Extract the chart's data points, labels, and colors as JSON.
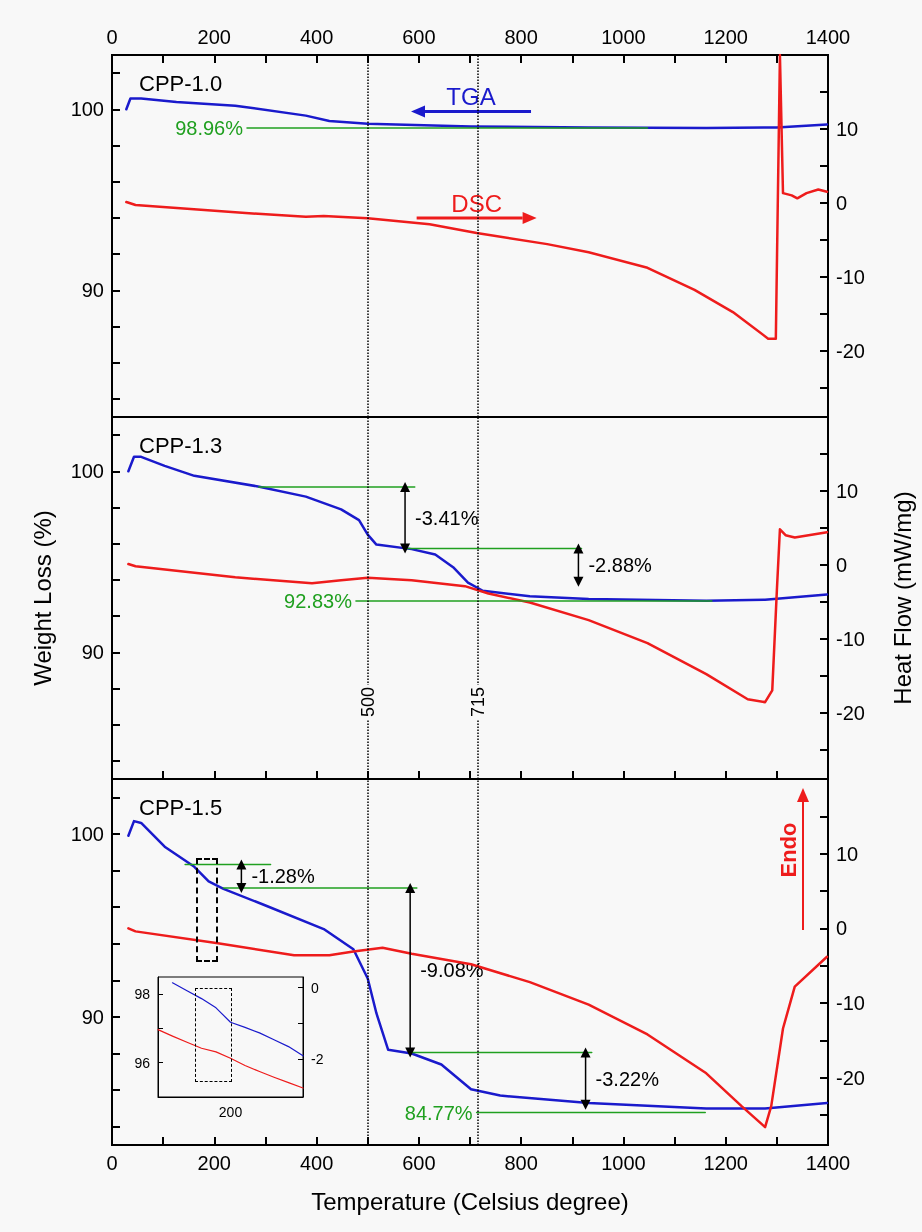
{
  "chart_data": [
    {
      "type": "line",
      "title": "CPP-1.0",
      "xlim": [
        0,
        1400
      ],
      "xticks": [
        0,
        {
          "value": 100,
          "label": null
        },
        200,
        {
          "value": 300,
          "label": null
        },
        400,
        {
          "value": 500,
          "label": null
        },
        600,
        {
          "value": 700,
          "label": null
        },
        800,
        {
          "value": 900,
          "label": null
        },
        1000,
        {
          "value": 1100,
          "label": null
        },
        1200,
        {
          "value": 1300,
          "label": null
        },
        1400
      ],
      "ylim": [
        83,
        103
      ],
      "yticks": [
        {
          "value": 84,
          "label": null
        },
        {
          "value": 86,
          "label": null
        },
        {
          "value": 88,
          "label": null
        },
        90,
        {
          "value": 92,
          "label": null
        },
        {
          "value": 94,
          "label": null
        },
        {
          "value": 96,
          "label": null
        },
        {
          "value": 98,
          "label": null
        },
        100,
        {
          "value": 102,
          "label": null
        }
      ],
      "y2lim": [
        -29,
        20
      ],
      "y2ticks": [
        {
          "value": -25,
          "label": null
        },
        -20,
        {
          "value": -15,
          "label": null
        },
        -10,
        {
          "value": -5,
          "label": null
        },
        0,
        {
          "value": 5,
          "label": null
        },
        10,
        {
          "value": 15,
          "label": null
        }
      ],
      "ref_lines": [
        {
          "axis": "x",
          "value": 500,
          "color": "#000000",
          "line_style": "dotted"
        },
        {
          "axis": "x",
          "value": 715,
          "color": "#000000",
          "line_style": "dotted"
        }
      ],
      "series": [
        {
          "name": "TGA",
          "color": "#1a1acc",
          "x": [
            28,
            36,
            57,
            126,
            241,
            379,
            425,
            500,
            702,
            932,
            1162,
            1300,
            1398
          ],
          "values": [
            100,
            100.6,
            100.6,
            100.4,
            100.2,
            99.65,
            99.35,
            99.2,
            99.05,
            98.99,
            98.97,
            99.0,
            99.16
          ]
        },
        {
          "name": "DSC",
          "color": "#ee1c1c",
          "axis": "y2",
          "x": [
            28,
            46,
            241,
            379,
            414,
            500,
            621,
            713,
            851,
            932,
            1047,
            1139,
            1214,
            1283,
            1298,
            1306,
            1312,
            1329,
            1340,
            1358,
            1381,
            1398
          ],
          "values": [
            0.1,
            -0.3,
            -1.3,
            -1.9,
            -1.8,
            -2.1,
            -2.9,
            -4.1,
            -5.6,
            -6.7,
            -8.8,
            -11.8,
            -14.8,
            -18.4,
            -18.4,
            20,
            1.3,
            1.0,
            0.6,
            1.3,
            1.8,
            1.5
          ]
        },
        {
          "color": "#20a020",
          "marker": "none",
          "x": [
            264,
            1047
          ],
          "values": [
            98.96,
            98.96
          ],
          "value_labels": [
            "98.96%",
            null
          ]
        }
      ]
    },
    {
      "type": "line",
      "title": "CPP-1.3",
      "ylabel": "Weight Loss (%)",
      "y2label": "Heat Flow (mW/mg)",
      "xlim": [
        0,
        1400
      ],
      "xticks": [
        {
          "value": 0,
          "label": null
        },
        {
          "value": 100,
          "label": null
        },
        {
          "value": 200,
          "label": null
        },
        {
          "value": 300,
          "label": null
        },
        {
          "value": 400,
          "label": null
        },
        {
          "value": 500,
          "label": null
        },
        {
          "value": 600,
          "label": null
        },
        {
          "value": 700,
          "label": null
        },
        {
          "value": 800,
          "label": null
        },
        {
          "value": 900,
          "label": null
        },
        {
          "value": 1000,
          "label": null
        },
        {
          "value": 1100,
          "label": null
        },
        {
          "value": 1200,
          "label": null
        },
        {
          "value": 1300,
          "label": null
        },
        {
          "value": 1400,
          "label": null
        }
      ],
      "ylim": [
        83,
        103
      ],
      "yticks": [
        {
          "value": 84,
          "label": null
        },
        {
          "value": 86,
          "label": null
        },
        {
          "value": 88,
          "label": null
        },
        90,
        {
          "value": 92,
          "label": null
        },
        {
          "value": 94,
          "label": null
        },
        {
          "value": 96,
          "label": null
        },
        {
          "value": 98,
          "label": null
        },
        100,
        {
          "value": 102,
          "label": null
        }
      ],
      "y2lim": [
        -29,
        20
      ],
      "y2ticks": [
        {
          "value": -25,
          "label": null
        },
        -20,
        {
          "value": -15,
          "label": null
        },
        -10,
        {
          "value": -5,
          "label": null
        },
        0,
        {
          "value": 5,
          "label": null
        },
        10,
        {
          "value": 15,
          "label": null
        }
      ],
      "ref_lines": [
        {
          "axis": "x",
          "value": 500,
          "label": "500",
          "color": "#000000",
          "line_style": "dotted"
        },
        {
          "axis": "x",
          "value": 715,
          "label": "715",
          "color": "#000000",
          "line_style": "dotted"
        }
      ],
      "annotations": [
        {
          "text": "-3.41%",
          "x": 573,
          "y": 97.43
        },
        {
          "text": "-2.88%",
          "x": 912,
          "y": 94.8
        }
      ],
      "series": [
        {
          "color": "#1a1acc",
          "x": [
            32,
            43,
            57,
            103,
            161,
            288,
            379,
            448,
            483,
            500,
            517,
            586,
            632,
            667,
            696,
            725,
            817,
            932,
            1162,
            1277,
            1398
          ],
          "values": [
            100,
            100.8,
            100.8,
            100.3,
            99.75,
            99.15,
            98.6,
            97.9,
            97.3,
            96.5,
            95.95,
            95.7,
            95.4,
            94.7,
            93.85,
            93.4,
            93.1,
            92.95,
            92.85,
            92.9,
            93.2
          ]
        },
        {
          "color": "#ee1c1c",
          "axis": "y2",
          "x": [
            32,
            46,
            241,
            391,
            448,
            500,
            586,
            690,
            736,
            817,
            932,
            1047,
            1162,
            1243,
            1277,
            1291,
            1300,
            1306,
            1317,
            1335,
            1398
          ],
          "values": [
            0.1,
            -0.2,
            -1.7,
            -2.5,
            -2.1,
            -1.75,
            -2.1,
            -2.9,
            -3.9,
            -5.1,
            -7.5,
            -10.6,
            -14.8,
            -18.2,
            -18.6,
            -17,
            -3.5,
            4.8,
            4.0,
            3.7,
            4.4
          ]
        },
        {
          "color": "#20a020",
          "marker": "none",
          "x": [
            287,
            592
          ],
          "values": [
            99.13,
            99.13
          ]
        },
        {
          "color": "#20a020",
          "marker": "none",
          "x": [
            575,
            918
          ],
          "values": [
            95.73,
            95.73
          ]
        },
        {
          "color": "#20a020",
          "marker": "none",
          "x": [
            477,
            1173
          ],
          "values": [
            92.83,
            92.83
          ],
          "value_labels": [
            "92.83%",
            null
          ]
        },
        {
          "color": "#000000",
          "marker": "triangle",
          "x": [
            573,
            573
          ],
          "values": [
            99.13,
            95.73
          ]
        },
        {
          "color": "#000000",
          "marker": "triangle",
          "x": [
            912,
            912
          ],
          "values": [
            95.73,
            93.9
          ]
        }
      ]
    },
    {
      "type": "line",
      "title": "CPP-1.5",
      "xlabel": "Temperature (Celsius degree)",
      "xlim": [
        0,
        1400
      ],
      "xticks": [
        0,
        {
          "value": 100,
          "label": null
        },
        200,
        {
          "value": 300,
          "label": null
        },
        400,
        {
          "value": 500,
          "label": null
        },
        600,
        {
          "value": 700,
          "label": null
        },
        800,
        {
          "value": 900,
          "label": null
        },
        1000,
        {
          "value": 1100,
          "label": null
        },
        1200,
        {
          "value": 1300,
          "label": null
        },
        1400
      ],
      "ylim": [
        83,
        103
      ],
      "yticks": [
        {
          "value": 84,
          "label": null
        },
        {
          "value": 86,
          "label": null
        },
        {
          "value": 88,
          "label": null
        },
        90,
        {
          "value": 92,
          "label": null
        },
        {
          "value": 94,
          "label": null
        },
        {
          "value": 96,
          "label": null
        },
        {
          "value": 98,
          "label": null
        },
        100,
        {
          "value": 102,
          "label": null
        }
      ],
      "y2lim": [
        -29,
        20
      ],
      "y2ticks": [
        {
          "value": -25,
          "label": null
        },
        -20,
        {
          "value": -15,
          "label": null
        },
        -10,
        {
          "value": -5,
          "label": null
        },
        0,
        {
          "value": 5,
          "label": null
        },
        10,
        {
          "value": 15,
          "label": null
        }
      ],
      "ref_lines": [
        {
          "axis": "x",
          "value": 500,
          "color": "#000000",
          "line_style": "dotted"
        },
        {
          "axis": "x",
          "value": 715,
          "color": "#000000",
          "line_style": "dotted"
        }
      ],
      "annotations": [
        {
          "text": "-1.28%",
          "x": 253,
          "y": 97.69
        },
        {
          "text": "-9.08%",
          "x": 583,
          "y": 92.55
        },
        {
          "text": "-3.22%",
          "x": 926,
          "y": 86.6
        },
        "Endo"
      ],
      "series": [
        {
          "color": "#1a1acc",
          "x": [
            32,
            43,
            57,
            103,
            161,
            189,
            218,
            299,
            414,
            472,
            500,
            517,
            540,
            586,
            644,
            702,
            759,
            932,
            1162,
            1277,
            1398
          ],
          "values": [
            99.9,
            100.7,
            100.6,
            99.3,
            98.2,
            97.4,
            97.0,
            96.1,
            94.8,
            93.7,
            92.1,
            90.2,
            88.2,
            88.0,
            87.4,
            86.05,
            85.7,
            85.3,
            85.0,
            85.0,
            85.3
          ]
        },
        {
          "color": "#ee1c1c",
          "axis": "y2",
          "x": [
            32,
            46,
            207,
            356,
            425,
            472,
            529,
            586,
            702,
            817,
            932,
            1047,
            1162,
            1231,
            1277,
            1289,
            1312,
            1335,
            1398
          ],
          "values": [
            0,
            -0.4,
            -2,
            -3.6,
            -3.6,
            -3.1,
            -2.6,
            -3.4,
            -4.8,
            -7.2,
            -10.2,
            -14.2,
            -19.4,
            -23.8,
            -26.6,
            -23.8,
            -13.4,
            -7.8,
            -3.8
          ]
        },
        {
          "color": "#20a020",
          "marker": "none",
          "x": [
            143,
            310
          ],
          "values": [
            98.33,
            98.33
          ]
        },
        {
          "color": "#20a020",
          "marker": "none",
          "x": [
            218,
            596
          ],
          "values": [
            97.05,
            97.05
          ]
        },
        {
          "color": "#20a020",
          "marker": "none",
          "x": [
            586,
            938
          ],
          "values": [
            88.05,
            88.05
          ]
        },
        {
          "color": "#20a020",
          "marker": "none",
          "x": [
            713,
            1160
          ],
          "values": [
            84.77,
            84.77
          ],
          "value_labels": [
            "84.77%",
            null
          ]
        },
        {
          "color": "#000000",
          "marker": "triangle",
          "x": [
            253,
            253
          ],
          "values": [
            98.33,
            97.05
          ]
        },
        {
          "color": "#000000",
          "marker": "triangle",
          "x": [
            583,
            583
          ],
          "values": [
            97.05,
            88.05
          ]
        },
        {
          "color": "#000000",
          "marker": "triangle",
          "x": [
            926,
            926
          ],
          "values": [
            88.05,
            85.2
          ]
        }
      ]
    },
    {
      "type": "line",
      "categories": [
        null,
        null,
        null,
        null,
        null,
        "200",
        null,
        null,
        null,
        null,
        null
      ],
      "ylim": [
        95,
        98.5
      ],
      "yticks": [
        96,
        {
          "value": 97,
          "label": null
        },
        98
      ],
      "y2lim": [
        -3.05,
        0.3
      ],
      "y2ticks": [
        -2,
        {
          "value": -1,
          "label": null
        },
        0
      ],
      "series": [
        {
          "color": "#1a1acc",
          "values": [
            null,
            98.33,
            98.1,
            97.87,
            97.6,
            97.18,
            97.03,
            96.87,
            96.67,
            96.47,
            96.2
          ]
        },
        {
          "color": "#ee1c1c",
          "axis": "y2",
          "values": [
            -1.17,
            -1.35,
            -1.52,
            -1.69,
            -1.79,
            -1.97,
            -2.17,
            -2.34,
            -2.5,
            -2.65,
            -2.8
          ]
        }
      ]
    }
  ]
}
